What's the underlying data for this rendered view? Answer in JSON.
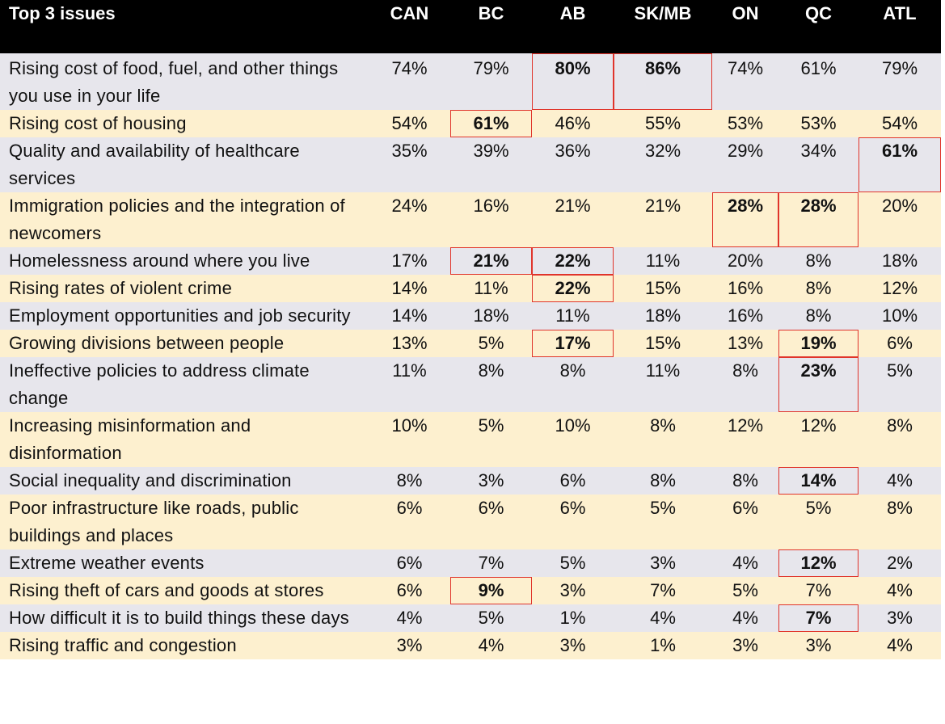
{
  "table": {
    "header": {
      "issue": "Top 3 issues",
      "regions": [
        "CAN",
        "BC",
        "AB",
        "SK/MB",
        "ON",
        "QC",
        "ATL"
      ]
    },
    "highlight_color": "#e0342b",
    "rows": [
      {
        "issue": "Rising cost of food, fuel, and other things you use in your life",
        "values": [
          "74%",
          "79%",
          "80%",
          "86%",
          "74%",
          "61%",
          "79%"
        ],
        "highlighted": [
          false,
          false,
          true,
          true,
          false,
          false,
          false
        ]
      },
      {
        "issue": "Rising cost of housing",
        "values": [
          "54%",
          "61%",
          "46%",
          "55%",
          "53%",
          "53%",
          "54%"
        ],
        "highlighted": [
          false,
          true,
          false,
          false,
          false,
          false,
          false
        ]
      },
      {
        "issue": "Quality and availability of healthcare services",
        "values": [
          "35%",
          "39%",
          "36%",
          "32%",
          "29%",
          "34%",
          "61%"
        ],
        "highlighted": [
          false,
          false,
          false,
          false,
          false,
          false,
          true
        ]
      },
      {
        "issue": "Immigration policies and the integration of newcomers",
        "values": [
          "24%",
          "16%",
          "21%",
          "21%",
          "28%",
          "28%",
          "20%"
        ],
        "highlighted": [
          false,
          false,
          false,
          false,
          true,
          true,
          false
        ]
      },
      {
        "issue": "Homelessness around where you live",
        "values": [
          "17%",
          "21%",
          "22%",
          "11%",
          "20%",
          "8%",
          "18%"
        ],
        "highlighted": [
          false,
          true,
          true,
          false,
          false,
          false,
          false
        ]
      },
      {
        "issue": "Rising rates of violent crime",
        "values": [
          "14%",
          "11%",
          "22%",
          "15%",
          "16%",
          "8%",
          "12%"
        ],
        "highlighted": [
          false,
          false,
          true,
          false,
          false,
          false,
          false
        ]
      },
      {
        "issue": "Employment opportunities and job security",
        "values": [
          "14%",
          "18%",
          "11%",
          "18%",
          "16%",
          "8%",
          "10%"
        ],
        "highlighted": [
          false,
          false,
          false,
          false,
          false,
          false,
          false
        ]
      },
      {
        "issue": "Growing divisions between people",
        "values": [
          "13%",
          "5%",
          "17%",
          "15%",
          "13%",
          "19%",
          "6%"
        ],
        "highlighted": [
          false,
          false,
          true,
          false,
          false,
          true,
          false
        ]
      },
      {
        "issue": "Ineffective policies to address climate change",
        "values": [
          "11%",
          "8%",
          "8%",
          "11%",
          "8%",
          "23%",
          "5%"
        ],
        "highlighted": [
          false,
          false,
          false,
          false,
          false,
          true,
          false
        ]
      },
      {
        "issue": "Increasing misinformation and disinformation",
        "values": [
          "10%",
          "5%",
          "10%",
          "8%",
          "12%",
          "12%",
          "8%"
        ],
        "highlighted": [
          false,
          false,
          false,
          false,
          false,
          false,
          false
        ]
      },
      {
        "issue": "Social inequality and discrimination",
        "values": [
          "8%",
          "3%",
          "6%",
          "8%",
          "8%",
          "14%",
          "4%"
        ],
        "highlighted": [
          false,
          false,
          false,
          false,
          false,
          true,
          false
        ]
      },
      {
        "issue": "Poor infrastructure like roads, public buildings and places",
        "values": [
          "6%",
          "6%",
          "6%",
          "5%",
          "6%",
          "5%",
          "8%"
        ],
        "highlighted": [
          false,
          false,
          false,
          false,
          false,
          false,
          false
        ]
      },
      {
        "issue": "Extreme weather events",
        "values": [
          "6%",
          "7%",
          "5%",
          "3%",
          "4%",
          "12%",
          "2%"
        ],
        "highlighted": [
          false,
          false,
          false,
          false,
          false,
          true,
          false
        ]
      },
      {
        "issue": "Rising theft of cars and goods at stores",
        "values": [
          "6%",
          "9%",
          "3%",
          "7%",
          "5%",
          "7%",
          "4%"
        ],
        "highlighted": [
          false,
          true,
          false,
          false,
          false,
          false,
          false
        ]
      },
      {
        "issue": "How difficult it is to build things these days",
        "values": [
          "4%",
          "5%",
          "1%",
          "4%",
          "4%",
          "7%",
          "3%"
        ],
        "highlighted": [
          false,
          false,
          false,
          false,
          false,
          true,
          false
        ]
      },
      {
        "issue": "Rising traffic and congestion",
        "values": [
          "3%",
          "4%",
          "3%",
          "1%",
          "3%",
          "3%",
          "4%"
        ],
        "highlighted": [
          false,
          false,
          false,
          false,
          false,
          false,
          false
        ]
      }
    ]
  }
}
